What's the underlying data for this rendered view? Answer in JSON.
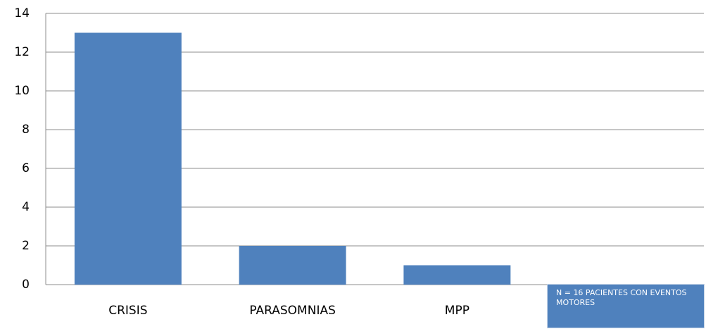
{
  "chart_data": {
    "type": "bar",
    "categories": [
      "CRISIS",
      "PARASOMNIAS",
      "MPP",
      null
    ],
    "values": [
      13,
      2,
      1,
      null
    ],
    "color": "#4f81bd",
    "ylim": [
      0,
      14
    ],
    "yticks": [
      0,
      2,
      4,
      6,
      8,
      10,
      12,
      14
    ],
    "grid": true,
    "annotation": "N = 16 PACIENTES CON EVENTOS MOTORES"
  }
}
